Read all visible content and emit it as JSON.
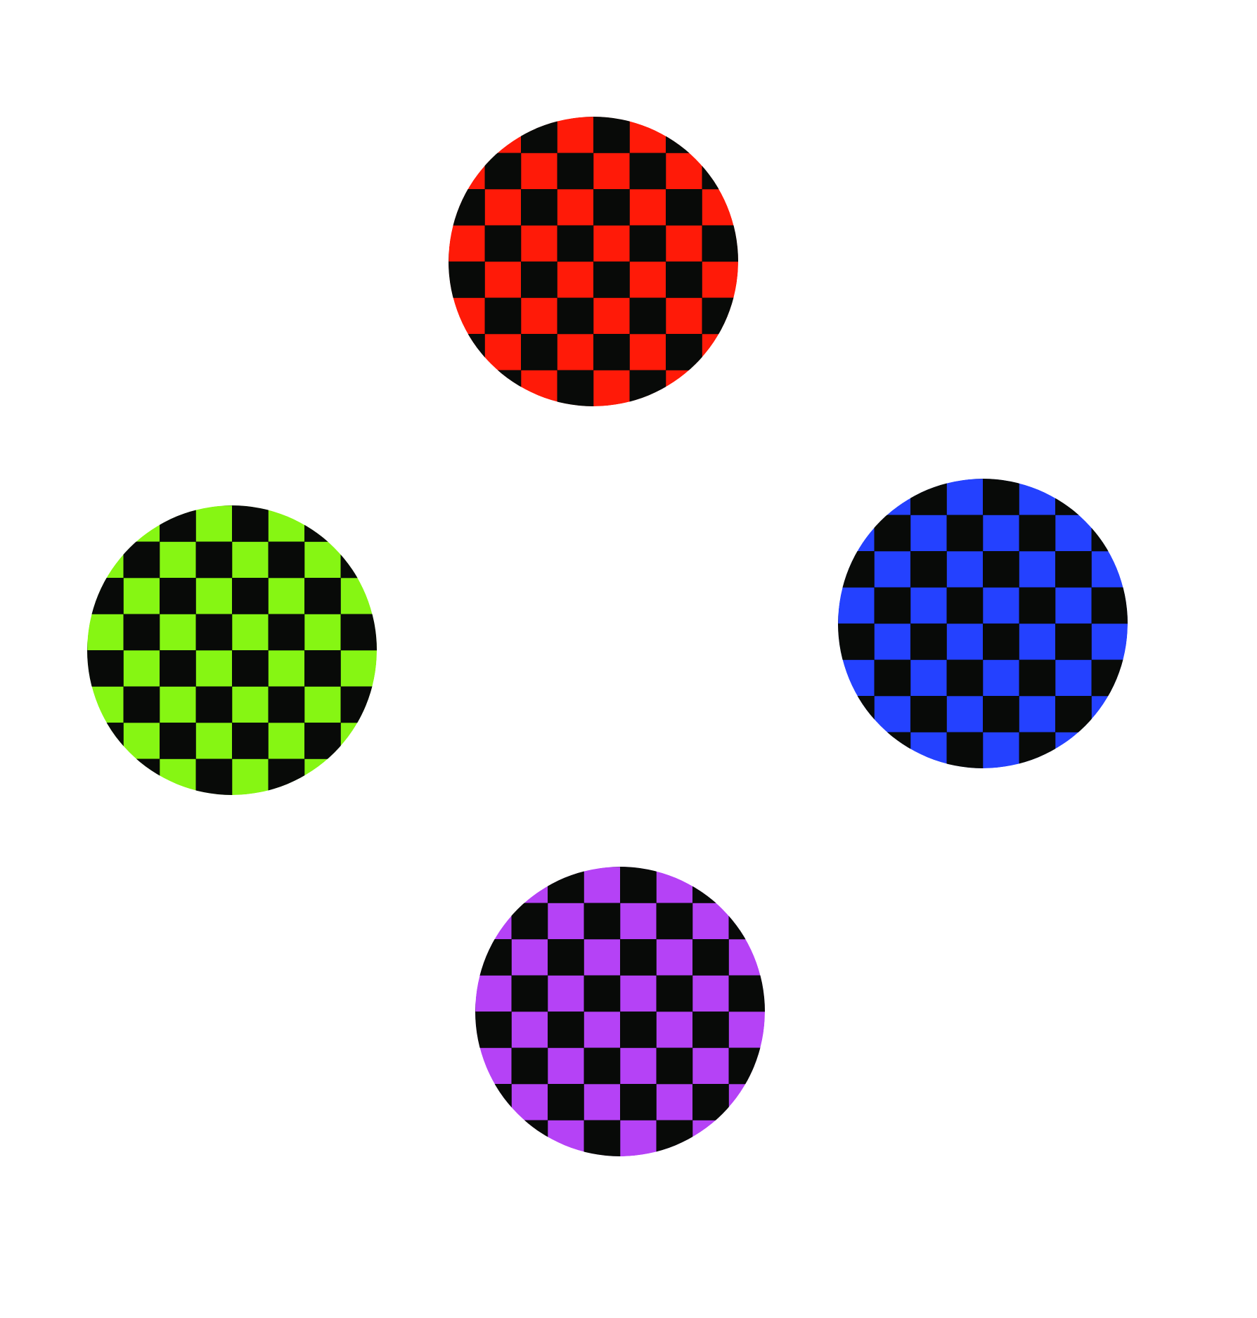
{
  "background_color": "#ffffff",
  "checker_dark_color": "#080a08",
  "discs": [
    {
      "name": "red-checker-disc",
      "color": "#ff1a08"
    },
    {
      "name": "blue-checker-disc",
      "color": "#2441ff"
    },
    {
      "name": "purple-checker-disc",
      "color": "#b542f6"
    },
    {
      "name": "green-checker-disc",
      "color": "#86f613"
    }
  ]
}
